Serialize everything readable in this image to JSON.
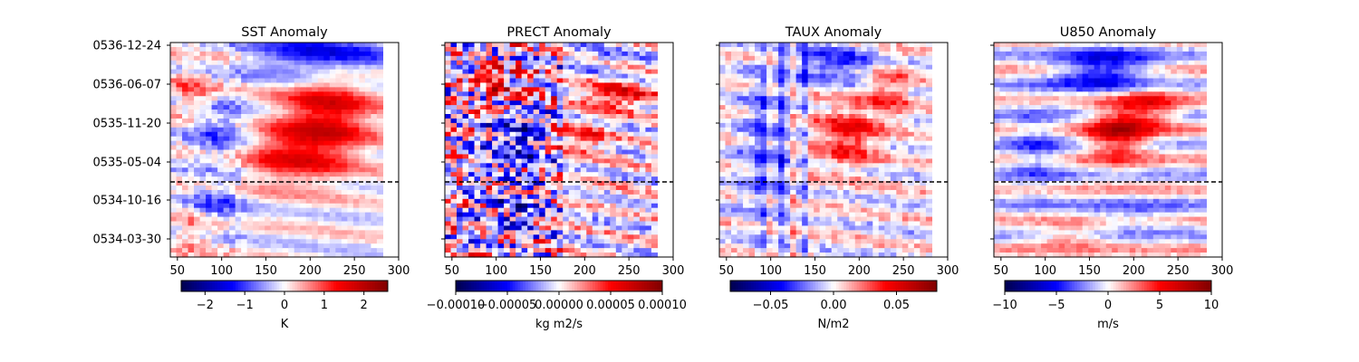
{
  "chart_data": [
    {
      "type": "heatmap",
      "title": "SST Anomaly",
      "x_ticks": [
        50,
        100,
        150,
        200,
        250,
        300
      ],
      "xlim": [
        42,
        300
      ],
      "x_data_range": [
        42,
        282
      ],
      "y_tick_labels": [
        "0536-12-24",
        "0536-06-07",
        "0535-11-20",
        "0535-05-04",
        "0534-10-16",
        "0534-03-30"
      ],
      "hline_fraction_from_top": 0.65,
      "hline_style": "black dashed",
      "colormap": "seismic",
      "colorbar": {
        "ticks": [
          -2,
          -1,
          0,
          1,
          2
        ],
        "tick_labels": [
          "−2",
          "−1",
          "0",
          "1",
          "2"
        ],
        "range": [
          -2.6,
          2.6
        ],
        "label": "K"
      },
      "pattern": "sst"
    },
    {
      "type": "heatmap",
      "title": "PRECT Anomaly",
      "x_ticks": [
        50,
        100,
        150,
        200,
        250,
        300
      ],
      "xlim": [
        42,
        300
      ],
      "x_data_range": [
        42,
        282
      ],
      "y_tick_labels": [],
      "hline_fraction_from_top": 0.65,
      "hline_style": "black dashed",
      "colormap": "seismic",
      "colorbar": {
        "ticks": [
          -0.0001,
          -5e-05,
          0,
          5e-05,
          0.0001
        ],
        "tick_labels": [
          "−0.00010",
          "−0.00005",
          "0.00000",
          "0.00005",
          "0.00010"
        ],
        "range": [
          -0.0001,
          0.0001
        ],
        "label": "kg m2/s"
      },
      "pattern": "prect"
    },
    {
      "type": "heatmap",
      "title": "TAUX Anomaly",
      "x_ticks": [
        50,
        100,
        150,
        200,
        250,
        300
      ],
      "xlim": [
        42,
        300
      ],
      "x_data_range": [
        42,
        282
      ],
      "y_tick_labels": [],
      "hline_fraction_from_top": 0.65,
      "hline_style": "black dashed",
      "colormap": "seismic",
      "colorbar": {
        "ticks": [
          -0.05,
          0,
          0.05
        ],
        "tick_labels": [
          "−0.05",
          "0.00",
          "0.05"
        ],
        "range": [
          -0.082,
          0.082
        ],
        "label": "N/m2"
      },
      "pattern": "taux"
    },
    {
      "type": "heatmap",
      "title": "U850 Anomaly",
      "x_ticks": [
        50,
        100,
        150,
        200,
        250,
        300
      ],
      "xlim": [
        42,
        300
      ],
      "x_data_range": [
        42,
        282
      ],
      "y_tick_labels": [],
      "hline_fraction_from_top": 0.65,
      "hline_style": "black dashed",
      "colormap": "seismic",
      "colorbar": {
        "ticks": [
          -10,
          -5,
          0,
          5,
          10
        ],
        "tick_labels": [
          "−10",
          "−5",
          "0",
          "5",
          "10"
        ],
        "range": [
          -10,
          10
        ],
        "label": "m/s"
      },
      "pattern": "u850"
    }
  ]
}
